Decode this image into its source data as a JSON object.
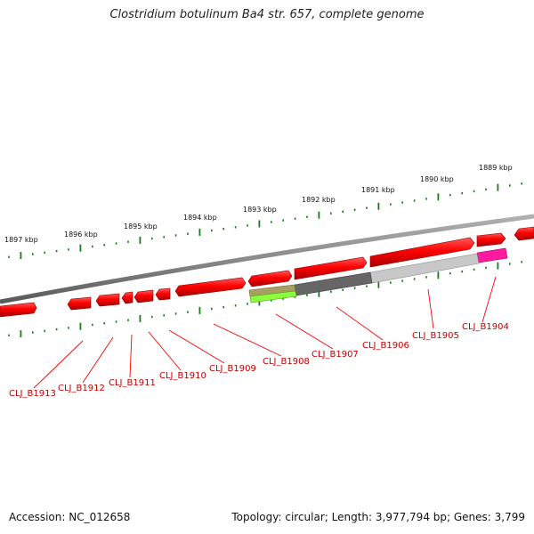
{
  "title": "Clostridium botulinum Ba4 str. 657, complete genome",
  "footer": {
    "accession": "Accession: NC_012658",
    "summary": "Topology: circular; Length: 3,977,794 bp; Genes: 3,799"
  },
  "scale_labels": [
    "1897 kbp",
    "1896 kbp",
    "1895 kbp",
    "1894 kbp",
    "1893 kbp",
    "1892 kbp",
    "1891 kbp",
    "1890 kbp",
    "1889 kbp"
  ],
  "gene_labels": [
    "CLJ_B1913",
    "CLJ_B1912",
    "CLJ_B1911",
    "CLJ_B1910",
    "CLJ_B1909",
    "CLJ_B1908",
    "CLJ_B1907",
    "CLJ_B1906",
    "CLJ_B1905",
    "CLJ_B1904"
  ],
  "colors": {
    "cds": "#ff0000",
    "cds_dark": "#b00000",
    "backbone": "#888888",
    "tick": "#1a7a1a",
    "label_line": "#ff0000",
    "highlight_magenta": "#ff1aa0",
    "highlight_gray_dark": "#666666",
    "highlight_gray_light": "#c8c8c8",
    "highlight_olive": "#a8a060",
    "highlight_green": "#8cff3c"
  }
}
